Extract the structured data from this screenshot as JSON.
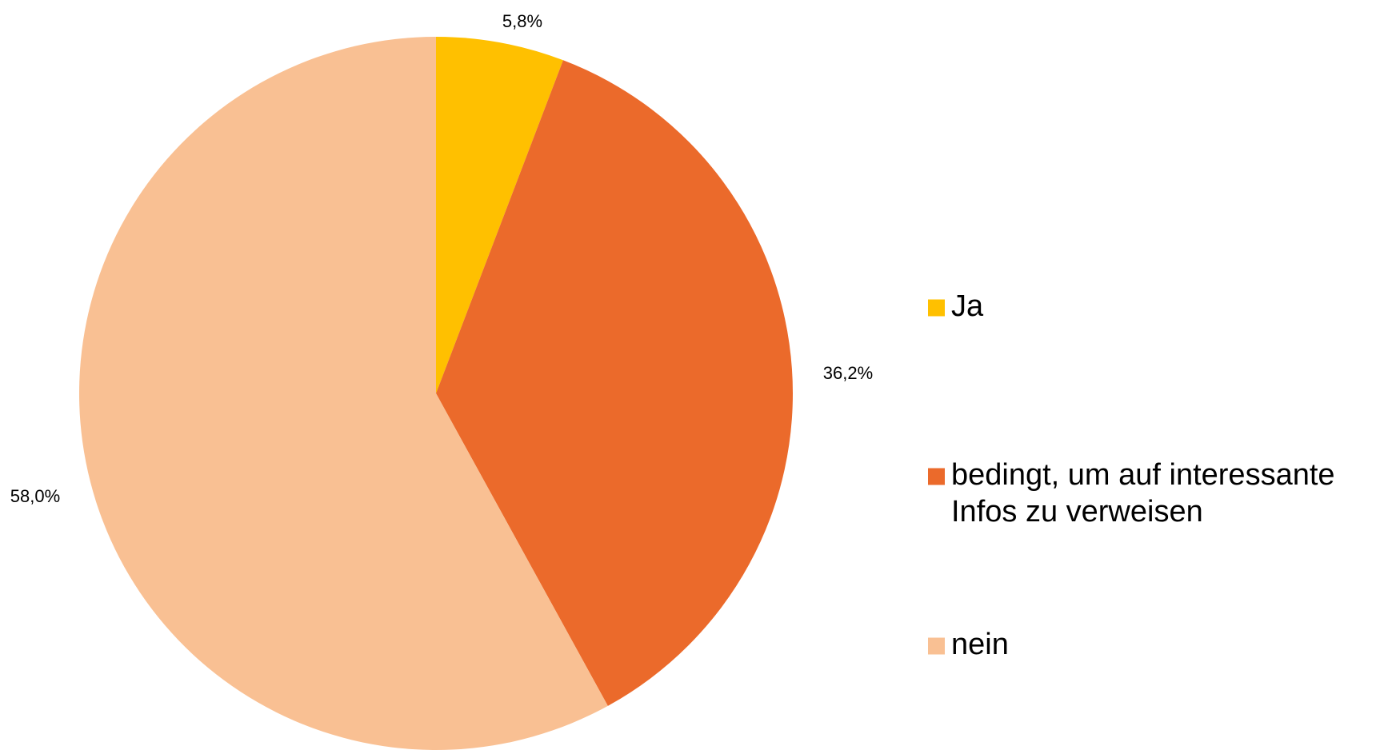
{
  "chart_data": {
    "type": "pie",
    "title": "",
    "start_angle_deg": 0,
    "direction": "clockwise",
    "legend_position": "right",
    "slices": [
      {
        "label_lines": [
          "Ja"
        ],
        "value": 5.8,
        "value_label": "5,8%",
        "color": "#FFC000"
      },
      {
        "label_lines": [
          "bedingt, um auf interessante",
          "Infos zu verweisen"
        ],
        "value": 36.2,
        "value_label": "36,2%",
        "color": "#EB6A2B"
      },
      {
        "label_lines": [
          "nein"
        ],
        "value": 58.0,
        "value_label": "58,0%",
        "color": "#F9C093"
      }
    ]
  }
}
